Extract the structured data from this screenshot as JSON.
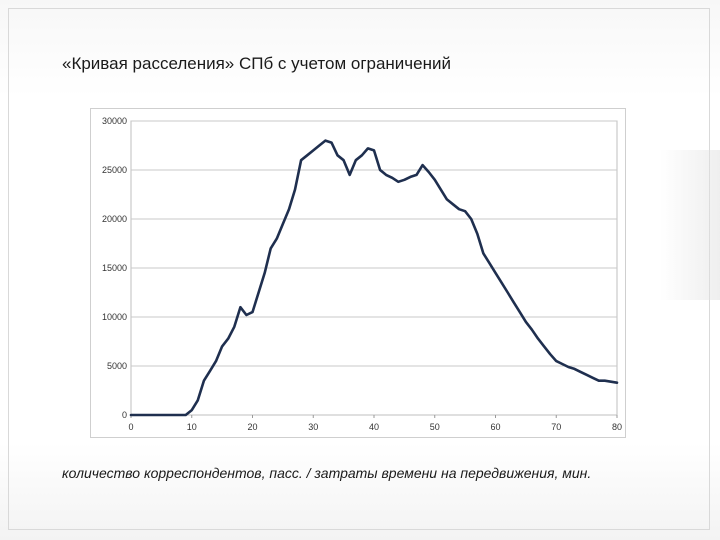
{
  "title": "«Кривая расселения» СПб с учетом ограничений",
  "caption": "количество корреспондентов, пасс. / затраты времени на передвижения, мин.",
  "chart_data": {
    "type": "line",
    "title": "«Кривая расселения» СПб с учетом ограничений",
    "xlabel": "количество корреспондентов, пасс. / затраты времени на передвижения, мин.",
    "ylabel": "",
    "xlim": [
      0,
      80
    ],
    "ylim": [
      0,
      30000
    ],
    "xticks": [
      "0",
      "10",
      "20",
      "30",
      "40",
      "50",
      "60",
      "70",
      "80"
    ],
    "yticks": [
      "0",
      "5000",
      "10000",
      "15000",
      "20000",
      "25000",
      "30000"
    ],
    "grid": "horizontal",
    "line_color": "#1f2f4f",
    "series": [
      {
        "name": "",
        "x": [
          0,
          9,
          10,
          11,
          12,
          13,
          14,
          15,
          16,
          17,
          18,
          19,
          20,
          21,
          22,
          23,
          24,
          25,
          26,
          27,
          28,
          29,
          30,
          31,
          32,
          33,
          34,
          35,
          36,
          37,
          38,
          39,
          40,
          41,
          42,
          43,
          44,
          45,
          46,
          47,
          48,
          49,
          50,
          51,
          52,
          53,
          54,
          55,
          56,
          57,
          58,
          59,
          60,
          61,
          62,
          63,
          64,
          65,
          66,
          67,
          68,
          69,
          70,
          71,
          72,
          73,
          74,
          75,
          76,
          77,
          78,
          79,
          80
        ],
        "values": [
          0,
          0,
          500,
          1500,
          3500,
          4500,
          5500,
          7000,
          7800,
          9000,
          11000,
          10200,
          10500,
          12500,
          14500,
          17000,
          18000,
          19500,
          21000,
          23000,
          26000,
          26500,
          27000,
          27500,
          28000,
          27800,
          26500,
          26000,
          24500,
          26000,
          26500,
          27200,
          27000,
          25000,
          24500,
          24200,
          23800,
          24000,
          24300,
          24500,
          25500,
          24800,
          24000,
          23000,
          22000,
          21500,
          21000,
          20800,
          20000,
          18500,
          16500,
          15500,
          14500,
          13500,
          12500,
          11500,
          10500,
          9500,
          8700,
          7800,
          7000,
          6200,
          5500,
          5200,
          4900,
          4700,
          4400,
          4100,
          3800,
          3500,
          3500,
          3400,
          3300
        ]
      }
    ]
  }
}
